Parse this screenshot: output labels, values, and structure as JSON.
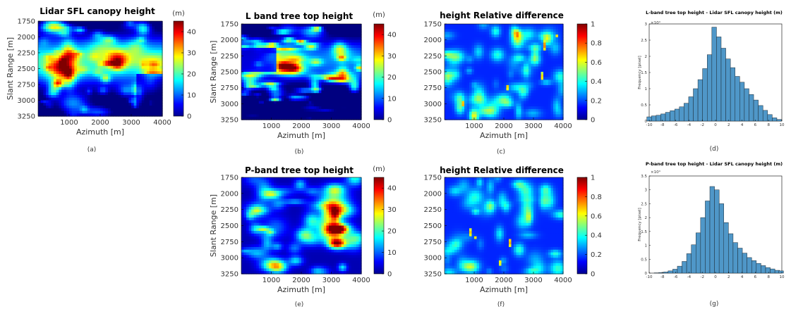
{
  "panels": [
    {
      "id": "a",
      "title": "Lidar SFL canopy height",
      "cb_unit": "(m)",
      "cb_ticks": [
        "0",
        "10",
        "20",
        "30",
        "40"
      ],
      "cb_max": 45,
      "seed": 11,
      "mode": "lidar",
      "caption": "(a)"
    },
    {
      "id": "b",
      "title": "L band tree top height",
      "cb_unit": "(m)",
      "cb_ticks": [
        "0",
        "10",
        "20",
        "30",
        "40"
      ],
      "cb_max": 45,
      "seed": 23,
      "mode": "lband",
      "caption": "(b)"
    },
    {
      "id": "c",
      "title": "height Relative difference",
      "cb_unit": "",
      "cb_ticks": [
        "0",
        "0.2",
        "0.4",
        "0.6",
        "0.8",
        "1"
      ],
      "cb_max": 1,
      "seed": 37,
      "mode": "diff",
      "caption": "(c)"
    },
    {
      "id": "e",
      "title": "P-band tree top height",
      "cb_unit": "(m)",
      "cb_ticks": [
        "0",
        "10",
        "20",
        "30",
        "40"
      ],
      "cb_max": 45,
      "seed": 51,
      "mode": "pband",
      "caption": "(e)"
    },
    {
      "id": "f",
      "title": "height Relative difference",
      "cb_unit": "",
      "cb_ticks": [
        "0",
        "0.2",
        "0.4",
        "0.6",
        "0.8",
        "1"
      ],
      "cb_max": 1,
      "seed": 67,
      "mode": "diff2",
      "caption": "(f)"
    }
  ],
  "map_axes": {
    "xlabel": "Azimuth [m]",
    "ylabel": "Slant Range [m]",
    "xticks": [
      "1000",
      "2000",
      "3000",
      "4000"
    ],
    "yticks": [
      "1750",
      "2000",
      "2250",
      "2500",
      "2750",
      "3000",
      "3250"
    ]
  },
  "chart_data": [
    {
      "type": "bar",
      "title": "L-band tree top height - Lidar SFL canopy height (m)",
      "xlabel": "",
      "ylabel": "Frequency [pixel]",
      "exponent": "×10⁴",
      "x": [
        -10,
        -9.3,
        -8.6,
        -7.9,
        -7.2,
        -6.5,
        -5.8,
        -5.1,
        -4.4,
        -3.7,
        -3,
        -2.3,
        -1.6,
        -0.9,
        -0.2,
        0.5,
        1.2,
        1.9,
        2.6,
        3.3,
        4,
        4.7,
        5.4,
        6.1,
        6.8,
        7.5,
        8.2,
        8.9,
        9.6
      ],
      "values": [
        0.13,
        0.16,
        0.18,
        0.22,
        0.27,
        0.32,
        0.37,
        0.44,
        0.55,
        0.75,
        1.0,
        1.28,
        1.62,
        2.05,
        2.9,
        2.6,
        2.25,
        1.92,
        1.65,
        1.38,
        1.2,
        1.0,
        0.82,
        0.65,
        0.48,
        0.33,
        0.2,
        0.1,
        0.05
      ],
      "xlim": [
        -10,
        10
      ],
      "ylim": [
        0,
        3
      ],
      "xticks": [
        "-10",
        "-8",
        "-6",
        "-4",
        "-2",
        "0",
        "2",
        "4",
        "6",
        "8",
        "10"
      ],
      "yticks": [
        "0",
        "0.5",
        "1",
        "1.5",
        "2",
        "2.5",
        "3"
      ],
      "caption": "(d)"
    },
    {
      "type": "bar",
      "title": "P-band tree top height - Lidar SFL canopy height (m)",
      "xlabel": "",
      "ylabel": "Frequency [pixel]",
      "exponent": "×10⁴",
      "x": [
        -9.6,
        -8.9,
        -8.2,
        -7.5,
        -6.8,
        -6.1,
        -5.4,
        -4.7,
        -4,
        -3.3,
        -2.6,
        -1.9,
        -1.2,
        -0.5,
        0.2,
        0.9,
        1.6,
        2.3,
        3,
        3.7,
        4.4,
        5.1,
        5.8,
        6.5,
        7.2,
        7.9,
        8.6,
        9.3,
        9.9
      ],
      "values": [
        0.0,
        0.01,
        0.02,
        0.04,
        0.08,
        0.14,
        0.25,
        0.42,
        0.7,
        1.02,
        1.45,
        2.0,
        2.6,
        3.12,
        3.0,
        2.5,
        1.82,
        1.42,
        1.1,
        0.9,
        0.72,
        0.56,
        0.45,
        0.35,
        0.27,
        0.2,
        0.15,
        0.1,
        0.08
      ],
      "xlim": [
        -10,
        10
      ],
      "ylim": [
        0,
        3.5
      ],
      "xticks": [
        "-10",
        "-8",
        "-6",
        "-4",
        "-2",
        "0",
        "2",
        "4",
        "6",
        "8",
        "10"
      ],
      "yticks": [
        "0",
        "0.5",
        "1",
        "1.5",
        "2",
        "2.5",
        "3",
        "3.5"
      ],
      "caption": "(g)"
    }
  ]
}
